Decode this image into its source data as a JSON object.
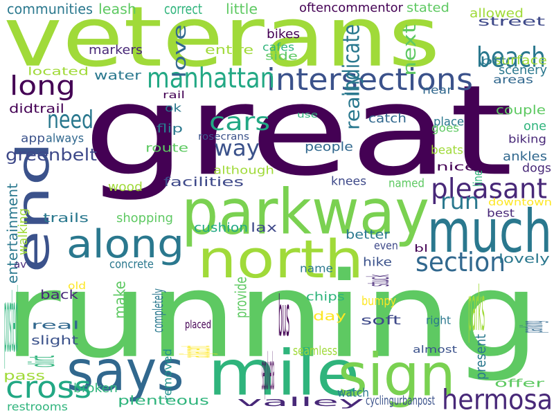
{
  "palette": {
    "dark_purple": "#440154",
    "indigo": "#3b528b",
    "teal": "#21918c",
    "green": "#5ec962",
    "lime": "#a0da39",
    "yellow": "#fde725"
  },
  "words": [
    {
      "text": "veterans",
      "color": "#a0da39",
      "rotated": false
    },
    {
      "text": "great",
      "color": "#440154",
      "rotated": false
    },
    {
      "text": "running",
      "color": "#5ec962",
      "rotated": false
    },
    {
      "text": "parkway",
      "color": "#7ad151",
      "rotated": false
    },
    {
      "text": "much",
      "color": "#2a788e",
      "rotated": false
    },
    {
      "text": "north",
      "color": "#a0da39",
      "rotated": false
    },
    {
      "text": "end",
      "color": "#3b528b",
      "rotated": true
    },
    {
      "text": "mile",
      "color": "#2fb47c",
      "rotated": false
    },
    {
      "text": "sign",
      "color": "#7ad151",
      "rotated": false
    },
    {
      "text": "says",
      "color": "#31688e",
      "rotated": false
    },
    {
      "text": "along",
      "color": "#2a788e",
      "rotated": false
    },
    {
      "text": "intersections",
      "color": "#3b528b",
      "rotated": false
    },
    {
      "text": "manhattan",
      "color": "#22a884",
      "rotated": false
    },
    {
      "text": "pleasant",
      "color": "#482878",
      "rotated": false
    },
    {
      "text": "beach",
      "color": "#2a788e",
      "rotated": false
    },
    {
      "text": "long",
      "color": "#440154",
      "rotated": false
    },
    {
      "text": "need",
      "color": "#2a788e",
      "rotated": false
    },
    {
      "text": "cars",
      "color": "#22a884",
      "rotated": false
    },
    {
      "text": "way",
      "color": "#3b528b",
      "rotated": false
    },
    {
      "text": "run",
      "color": "#2a788e",
      "rotated": false
    },
    {
      "text": "section",
      "color": "#31688e",
      "rotated": false
    },
    {
      "text": "cross",
      "color": "#22a884",
      "rotated": false
    },
    {
      "text": "hermosa",
      "color": "#482878",
      "rotated": false
    },
    {
      "text": "greenbelt",
      "color": "#3e4989",
      "rotated": false
    },
    {
      "text": "communities",
      "color": "#2a788e",
      "rotated": false
    },
    {
      "text": "leash",
      "color": "#5ec962",
      "rotated": false
    },
    {
      "text": "correct",
      "color": "#2fb47c",
      "rotated": false
    },
    {
      "text": "little",
      "color": "#5ec962",
      "rotated": false
    },
    {
      "text": "oftencommentor",
      "color": "#440154",
      "rotated": false
    },
    {
      "text": "stated",
      "color": "#5ec962",
      "rotated": false
    },
    {
      "text": "allowed",
      "color": "#a0da39",
      "rotated": false
    },
    {
      "text": "street",
      "color": "#3e4989",
      "rotated": false
    },
    {
      "text": "bikes",
      "color": "#440154",
      "rotated": false
    },
    {
      "text": "cafes",
      "color": "#2fb47c",
      "rotated": false
    },
    {
      "text": "side",
      "color": "#5ec962",
      "rotated": false
    },
    {
      "text": "entire",
      "color": "#a0da39",
      "rotated": false
    },
    {
      "text": "markers",
      "color": "#482878",
      "rotated": false
    },
    {
      "text": "love",
      "color": "#31688e",
      "rotated": true
    },
    {
      "text": "indicate",
      "color": "#2a788e",
      "rotated": true
    },
    {
      "text": "next",
      "color": "#5ec962",
      "rotated": true
    },
    {
      "text": "surface",
      "color": "#a0da39",
      "rotated": false
    },
    {
      "text": "bit",
      "color": "#2a788e",
      "rotated": false
    },
    {
      "text": "scenery",
      "color": "#2a788e",
      "rotated": false
    },
    {
      "text": "areas",
      "color": "#31688e",
      "rotated": false
    },
    {
      "text": "water",
      "color": "#2a788e",
      "rotated": false
    },
    {
      "text": "located",
      "color": "#a0da39",
      "rotated": false
    },
    {
      "text": "rail",
      "color": "#440154",
      "rotated": false
    },
    {
      "text": "near",
      "color": "#31688e",
      "rotated": false
    },
    {
      "text": "didtrail",
      "color": "#440154",
      "rotated": false
    },
    {
      "text": "ok",
      "color": "#2a788e",
      "rotated": false
    },
    {
      "text": "use",
      "color": "#2fb47c",
      "rotated": false
    },
    {
      "text": "really",
      "color": "#2a788e",
      "rotated": true
    },
    {
      "text": "catch",
      "color": "#31688e",
      "rotated": false
    },
    {
      "text": "couple",
      "color": "#5ec962",
      "rotated": false
    },
    {
      "text": "place",
      "color": "#2a788e",
      "rotated": false
    },
    {
      "text": "goes",
      "color": "#5ec962",
      "rotated": false
    },
    {
      "text": "one",
      "color": "#2fb47c",
      "rotated": false
    },
    {
      "text": "app",
      "color": "#3b528b",
      "rotated": false
    },
    {
      "text": "always",
      "color": "#31688e",
      "rotated": false
    },
    {
      "text": "flip",
      "color": "#2a788e",
      "rotated": false
    },
    {
      "text": "rosecrans",
      "color": "#3b528b",
      "rotated": false
    },
    {
      "text": "biking",
      "color": "#482878",
      "rotated": false
    },
    {
      "text": "route",
      "color": "#5ec962",
      "rotated": false
    },
    {
      "text": "people",
      "color": "#31688e",
      "rotated": false
    },
    {
      "text": "beats",
      "color": "#a0da39",
      "rotated": false
    },
    {
      "text": "ankles",
      "color": "#31688e",
      "rotated": false
    },
    {
      "text": "although",
      "color": "#a0da39",
      "rotated": false
    },
    {
      "text": "nice",
      "color": "#440154",
      "rotated": false
    },
    {
      "text": "line",
      "color": "#2fb47c",
      "rotated": true
    },
    {
      "text": "dogs",
      "color": "#482878",
      "rotated": false
    },
    {
      "text": "wood",
      "color": "#a0da39",
      "rotated": false
    },
    {
      "text": "facilities",
      "color": "#3e4989",
      "rotated": false
    },
    {
      "text": "knees",
      "color": "#3e4989",
      "rotated": false
    },
    {
      "text": "named",
      "color": "#5ec962",
      "rotated": false
    },
    {
      "text": "downtown",
      "color": "#fde725",
      "rotated": false
    },
    {
      "text": "entertainment",
      "color": "#2a788e",
      "rotated": true
    },
    {
      "text": "walking",
      "color": "#a0da39",
      "rotated": true
    },
    {
      "text": "trails",
      "color": "#2a788e",
      "rotated": false
    },
    {
      "text": "shopping",
      "color": "#5ec962",
      "rotated": false
    },
    {
      "text": "cushion",
      "color": "#22a884",
      "rotated": false
    },
    {
      "text": "lax",
      "color": "#3e4989",
      "rotated": false
    },
    {
      "text": "best",
      "color": "#482878",
      "rotated": false
    },
    {
      "text": "better",
      "color": "#2a788e",
      "rotated": false
    },
    {
      "text": "even",
      "color": "#3e4989",
      "rotated": false
    },
    {
      "text": "bl",
      "color": "#440154",
      "rotated": false
    },
    {
      "text": "av",
      "color": "#482878",
      "rotated": false
    },
    {
      "text": "concrete",
      "color": "#2a788e",
      "rotated": false
    },
    {
      "text": "name",
      "color": "#2a788e",
      "rotated": false
    },
    {
      "text": "hike",
      "color": "#3b528b",
      "rotated": false
    },
    {
      "text": "lovely",
      "color": "#2a788e",
      "rotated": false
    },
    {
      "text": "old",
      "color": "#fde725",
      "rotated": false
    },
    {
      "text": "back",
      "color": "#482878",
      "rotated": false
    },
    {
      "text": "make",
      "color": "#5ec962",
      "rotated": true
    },
    {
      "text": "posted",
      "color": "#2fb47c",
      "rotated": false
    },
    {
      "text": "completely",
      "color": "#2a788e",
      "rotated": true
    },
    {
      "text": "provide",
      "color": "#5ec962",
      "rotated": true
    },
    {
      "text": "stuck",
      "color": "#482878",
      "rotated": true
    },
    {
      "text": "bumpy",
      "color": "#fde725",
      "rotated": false
    },
    {
      "text": "chips",
      "color": "#2fb47c",
      "rotated": false
    },
    {
      "text": "parks",
      "color": "#a0da39",
      "rotated": false
    },
    {
      "text": "present",
      "color": "#2a788e",
      "rotated": true
    },
    {
      "text": "parking",
      "color": "#31688e",
      "rotated": true
    },
    {
      "text": "real",
      "color": "#31688e",
      "rotated": false
    },
    {
      "text": "slight",
      "color": "#3b528b",
      "rotated": false
    },
    {
      "text": "placed",
      "color": "#440154",
      "rotated": false
    },
    {
      "text": "day",
      "color": "#fde725",
      "rotated": false
    },
    {
      "text": "soft",
      "color": "#3e4989",
      "rotated": false
    },
    {
      "text": "right",
      "color": "#2a788e",
      "rotated": false
    },
    {
      "text": "bus",
      "color": "#440154",
      "rotated": false
    },
    {
      "text": "adjacent",
      "color": "#fde725",
      "rotated": true
    },
    {
      "text": "seamless",
      "color": "#a0da39",
      "rotated": false
    },
    {
      "text": "almost",
      "color": "#3b528b",
      "rotated": false
    },
    {
      "text": "sepulveda",
      "color": "#440154",
      "rotated": false
    },
    {
      "text": "removed",
      "color": "#21918c",
      "rotated": true
    },
    {
      "text": "dirt",
      "color": "#2fb47c",
      "rotated": true
    },
    {
      "text": "pass",
      "color": "#a0da39",
      "rotated": false
    },
    {
      "text": "watch",
      "color": "#2a788e",
      "rotated": false
    },
    {
      "text": "offer",
      "color": "#5ec962",
      "rotated": false
    },
    {
      "text": "broken",
      "color": "#2fb47c",
      "rotated": false
    },
    {
      "text": "valley",
      "color": "#482878",
      "rotated": false
    },
    {
      "text": "cyclingurbanpost",
      "color": "#3b528b",
      "rotated": false
    },
    {
      "text": "restrooms",
      "color": "#2fb47c",
      "rotated": false
    },
    {
      "text": "plenteous",
      "color": "#2fb47c",
      "rotated": false
    },
    {
      "text": "disadvantage",
      "color": "#482878",
      "rotated": false
    }
  ]
}
